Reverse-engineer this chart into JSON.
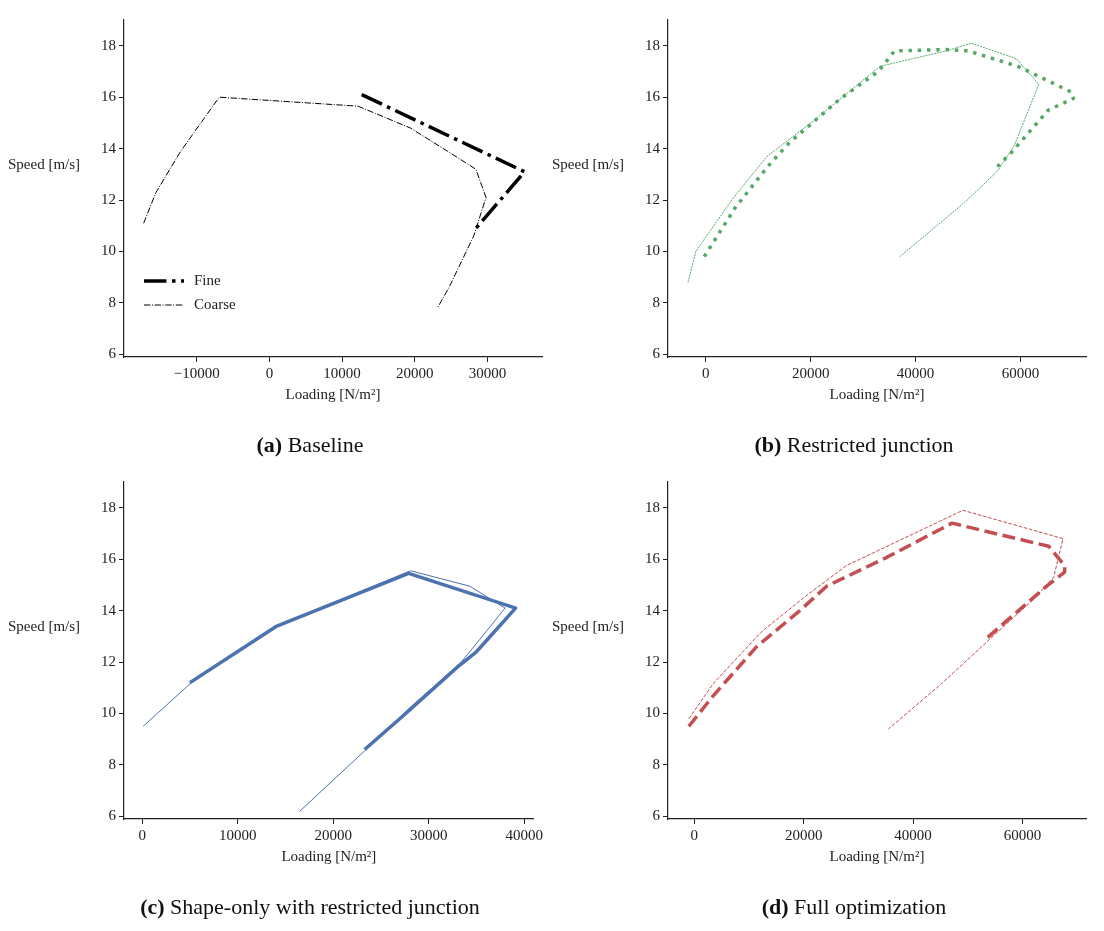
{
  "chart_data": [
    {
      "type": "line",
      "title": "(a) Baseline",
      "xlabel": "Loading [N/m²]",
      "ylabel": "Speed [m/s]",
      "xlim": [
        -20000,
        37500
      ],
      "ylim": [
        5.9,
        19
      ],
      "xticks": [
        -10000,
        0,
        10000,
        20000,
        30000
      ],
      "yticks": [
        6,
        8,
        10,
        12,
        14,
        16,
        18
      ],
      "grid": false,
      "legend": "bottom left",
      "line_style": "dashdot",
      "series": [
        {
          "name": "Fine",
          "color": "#000000",
          "x": [
            12700,
            35100,
            28100
          ],
          "values": [
            16.1,
            13.1,
            10.8
          ]
        },
        {
          "name": "Coarse",
          "color": "#000000",
          "x": [
            -17300,
            -15600,
            -12200,
            -6900,
            12200,
            19400,
            24500,
            28400,
            29800,
            28100,
            24700,
            23100
          ],
          "values": [
            11.1,
            12.3,
            13.9,
            16.0,
            15.65,
            14.8,
            13.9,
            13.2,
            12.1,
            10.6,
            8.6,
            7.8
          ]
        }
      ]
    },
    {
      "type": "line",
      "title": "(b) Restricted junction",
      "xlabel": "Loading [N/m²]",
      "ylabel": "Speed [m/s]",
      "xlim": [
        -7200,
        72500
      ],
      "ylim": [
        5.9,
        19
      ],
      "xticks": [
        0,
        20000,
        40000,
        60000
      ],
      "yticks": [
        6,
        8,
        10,
        12,
        14,
        16,
        18
      ],
      "grid": false,
      "line_style": "dotted",
      "series": [
        {
          "color": "#55a868",
          "x": [
            -300,
            5600,
            11800,
            15800,
            25400,
            32900,
            36000,
            45900,
            50000,
            59500,
            69700,
            70100,
            65300,
            58500,
            55600
          ],
          "values": [
            9.8,
            11.7,
            13.3,
            14.2,
            15.9,
            17.0,
            17.8,
            17.85,
            17.8,
            17.2,
            16.2,
            15.95,
            15.5,
            13.9,
            13.3
          ]
        },
        {
          "color": "#55a868",
          "x": [
            -3400,
            -1900,
            5300,
            11700,
            21300,
            33200,
            45900,
            50600,
            59200,
            63500,
            58800,
            55500,
            49300,
            37000
          ],
          "values": [
            8.8,
            10.0,
            12.1,
            13.7,
            15.2,
            17.2,
            17.8,
            18.1,
            17.5,
            16.5,
            14.1,
            13.1,
            11.9,
            9.8
          ]
        }
      ]
    },
    {
      "type": "line",
      "title": "(c) Shape-only with restricted junction",
      "xlabel": "Loading [N/m²]",
      "ylabel": "Speed [m/s]",
      "xlim": [
        -1900,
        41000
      ],
      "ylim": [
        5.9,
        19
      ],
      "xticks": [
        0,
        10000,
        20000,
        30000,
        40000
      ],
      "yticks": [
        6,
        8,
        10,
        12,
        14,
        16,
        18
      ],
      "grid": false,
      "line_style": "solid",
      "series": [
        {
          "color": "#4c72b0",
          "x": [
            5000,
            14100,
            27900,
            39100,
            35000,
            33000,
            27900,
            23300
          ],
          "values": [
            11.2,
            13.4,
            15.45,
            14.1,
            12.4,
            11.8,
            10.1,
            8.6
          ]
        },
        {
          "color": "#4c72b0",
          "x": [
            100,
            5000,
            14100,
            28100,
            34300,
            38000,
            35400,
            33400,
            28100,
            23300,
            16500
          ],
          "values": [
            9.5,
            11.15,
            13.4,
            15.55,
            14.95,
            14.1,
            12.9,
            12.0,
            10.25,
            8.55,
            6.2
          ]
        }
      ]
    },
    {
      "type": "line",
      "title": "(d) Full optimization",
      "xlabel": "Loading [N/m²]",
      "ylabel": "Speed [m/s]",
      "xlim": [
        -4800,
        71600
      ],
      "ylim": [
        5.9,
        19
      ],
      "xticks": [
        0,
        20000,
        40000,
        60000
      ],
      "yticks": [
        6,
        8,
        10,
        12,
        14,
        16,
        18
      ],
      "grid": false,
      "line_style": "dashed",
      "series": [
        {
          "color": "#c44e52",
          "x": [
            -1000,
            3300,
            11400,
            19300,
            24200,
            35000,
            47100,
            64800,
            67700,
            67700,
            64400,
            53300
          ],
          "values": [
            9.5,
            10.65,
            12.6,
            14.0,
            14.95,
            16.05,
            17.4,
            16.5,
            15.75,
            15.5,
            14.95,
            12.9
          ]
        },
        {
          "color": "#c44e52",
          "x": [
            -1000,
            3600,
            12400,
            20600,
            27800,
            49100,
            67400,
            65700,
            61800,
            53300,
            45400,
            35500
          ],
          "values": [
            9.8,
            11.2,
            13.2,
            14.6,
            15.75,
            17.9,
            16.8,
            15.3,
            14.4,
            12.75,
            11.2,
            9.4
          ]
        }
      ]
    }
  ]
}
